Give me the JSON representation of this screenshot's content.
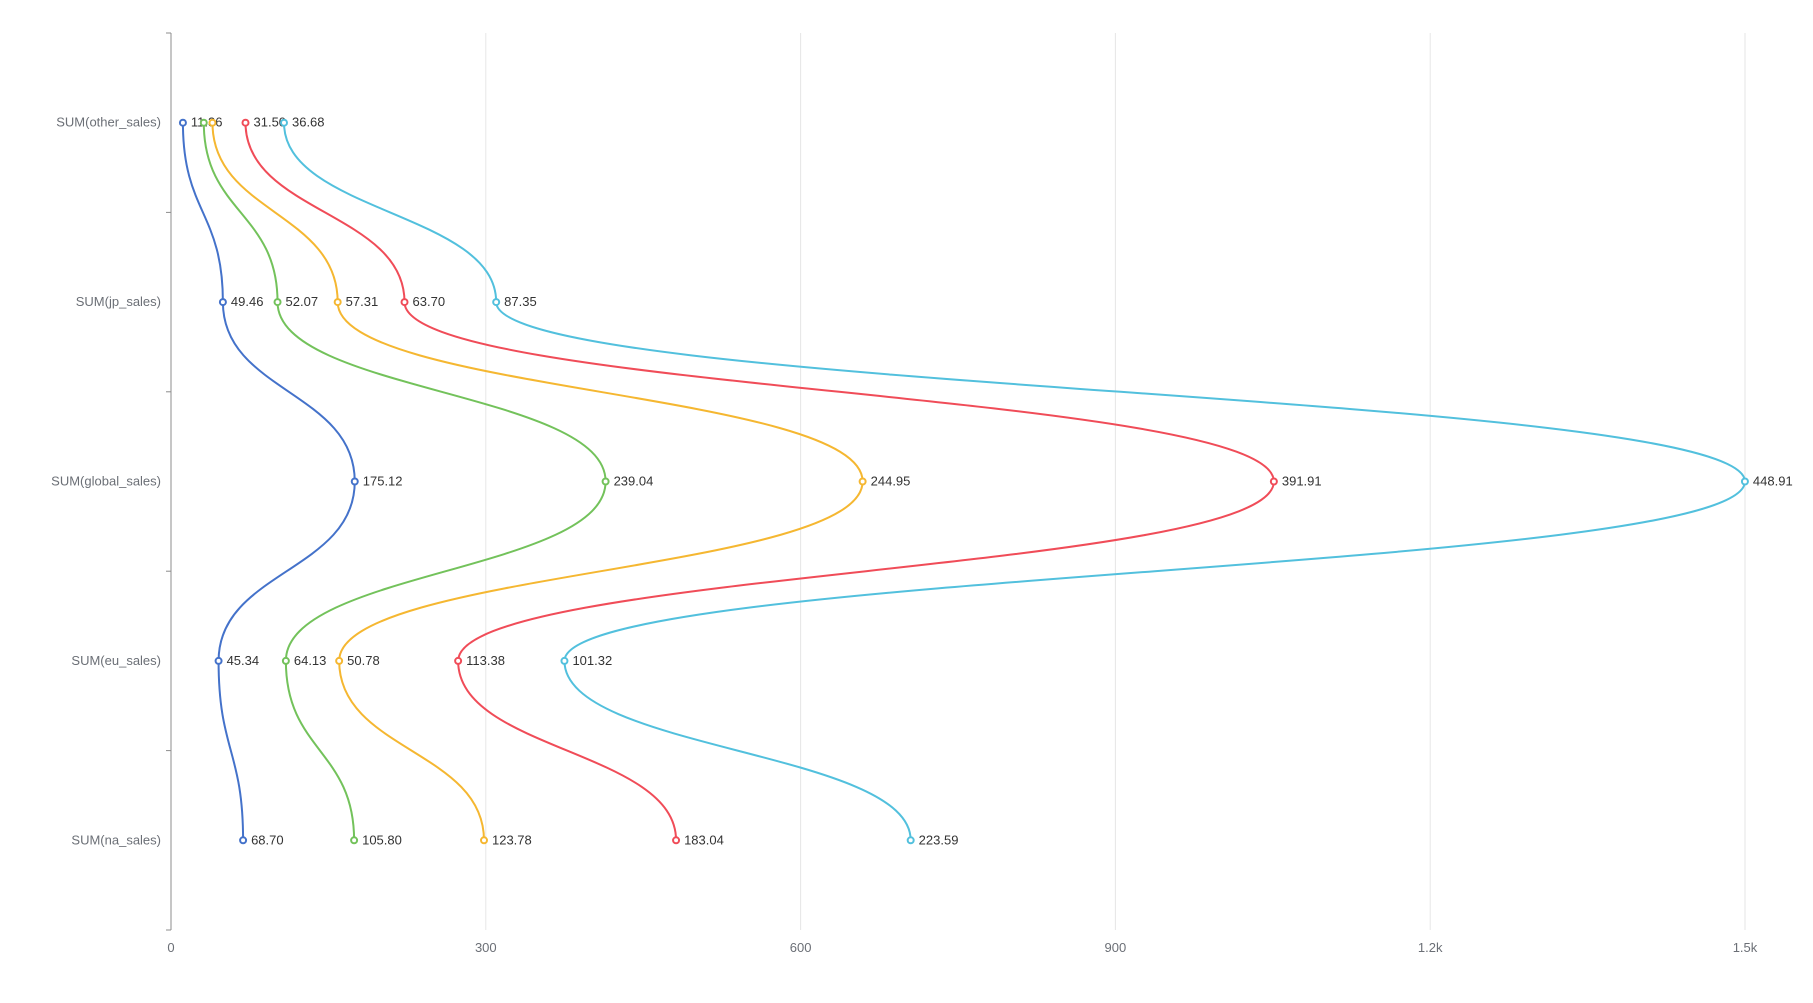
{
  "chart_data": {
    "type": "line",
    "title": "",
    "xlabel": "",
    "ylabel": "",
    "orientation": "horizontal-values",
    "categories": [
      "SUM(other_sales)",
      "SUM(jp_sales)",
      "SUM(global_sales)",
      "SUM(eu_sales)",
      "SUM(na_sales)"
    ],
    "xlim": [
      0,
      1500
    ],
    "x_ticks": [
      0,
      300,
      600,
      900,
      1200,
      1500
    ],
    "x_tick_labels": [
      "0",
      "300",
      "600",
      "900",
      "1.2k",
      "1.5k"
    ],
    "grid": true,
    "legend": "none",
    "stacked": true,
    "colors": [
      "#4472ca",
      "#73c25b",
      "#f5b731",
      "#f04c58",
      "#52c0dd"
    ],
    "series": [
      {
        "values": [
          11.36,
          49.46,
          175.12,
          45.34,
          68.7
        ],
        "labels": [
          "11.36",
          "49.46",
          "175.12",
          "45.34",
          "68.70"
        ]
      },
      {
        "values": [
          19.89,
          52.07,
          239.04,
          64.13,
          105.8
        ],
        "labels": [
          "",
          "52.07",
          "239.04",
          "64.13",
          "105.80"
        ]
      },
      {
        "values": [
          8.25,
          57.31,
          244.95,
          50.78,
          123.78
        ],
        "labels": [
          "",
          "57.31",
          "244.95",
          "50.78",
          "123.78"
        ]
      },
      {
        "values": [
          31.5,
          63.7,
          391.91,
          113.38,
          183.04
        ],
        "labels": [
          "31.50",
          "63.70",
          "391.91",
          "113.38",
          "183.04"
        ]
      },
      {
        "values": [
          36.68,
          87.35,
          448.91,
          101.32,
          223.59
        ],
        "labels": [
          "36.68",
          "87.35",
          "448.91",
          "101.32",
          "223.59"
        ]
      }
    ]
  }
}
